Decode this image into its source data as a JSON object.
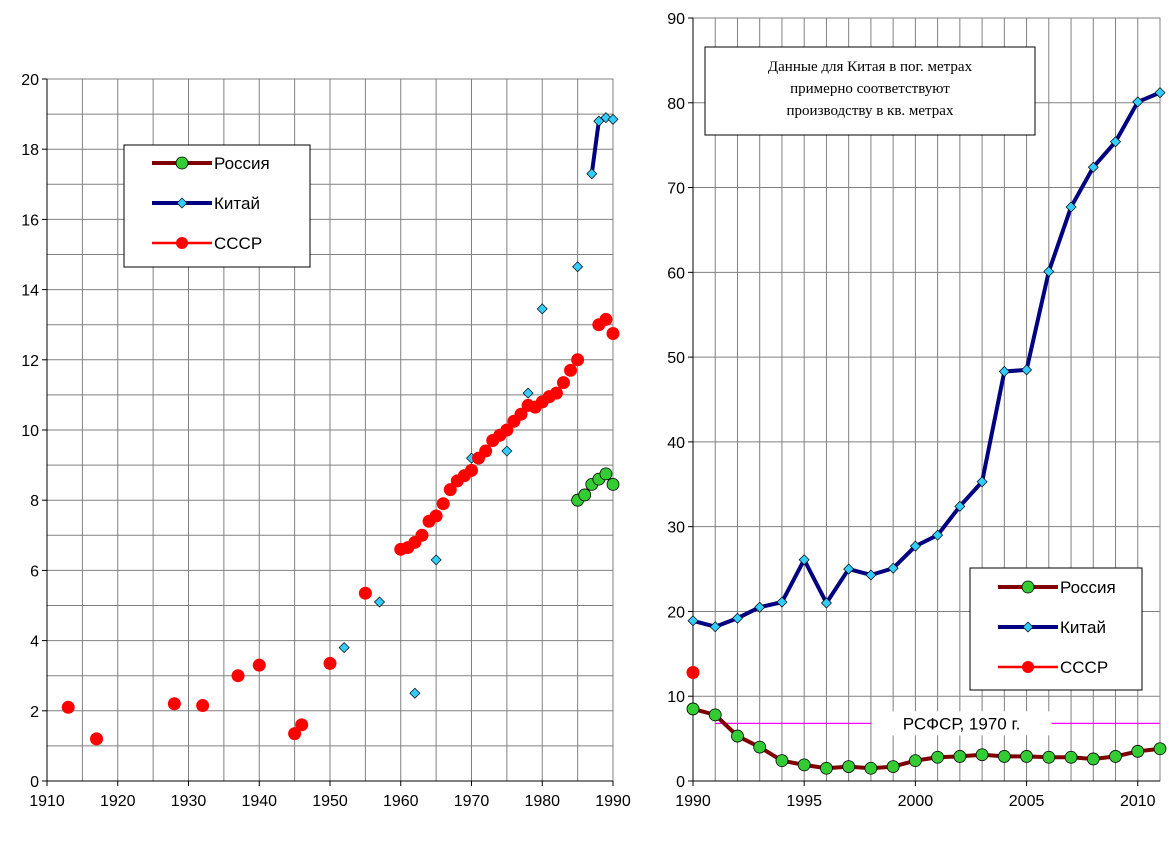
{
  "chart_data": [
    {
      "type": "line",
      "title": "",
      "xlabel": "",
      "ylabel": "",
      "xlim": [
        1910,
        1990
      ],
      "ylim": [
        0,
        20
      ],
      "x_ticks": [
        "1910",
        "1920",
        "1930",
        "1940",
        "1950",
        "1960",
        "1970",
        "1980",
        "1990"
      ],
      "y_ticks": [
        "0",
        "2",
        "4",
        "6",
        "8",
        "10",
        "12",
        "14",
        "16",
        "18",
        "20"
      ],
      "grid": true,
      "legend": "top-left",
      "colors": {
        "russia": "#800000",
        "russia_marker": "#33cc33",
        "china": "#000080",
        "china_marker": "#33ccff",
        "ussr": "#ff0000"
      },
      "series": [
        {
          "name": "Россия",
          "style": "line-markers",
          "x": [
            1985,
            1986,
            1987,
            1988,
            1989,
            1990
          ],
          "y": [
            8.0,
            8.15,
            8.45,
            8.6,
            8.75,
            8.45
          ]
        },
        {
          "name": "Китай",
          "style": "line-markers",
          "x": [
            1952,
            1957,
            1962,
            1965,
            1970,
            1975,
            1978,
            1980,
            1985,
            1987,
            1988,
            1989,
            1990
          ],
          "y": [
            3.8,
            5.1,
            2.5,
            6.3,
            9.2,
            9.4,
            11.05,
            13.45,
            14.65,
            17.3,
            18.8,
            18.9,
            18.85
          ],
          "connected_from": 1987
        },
        {
          "name": "СССР",
          "style": "markers",
          "x": [
            1913,
            1917,
            1928,
            1932,
            1937,
            1940,
            1945,
            1946,
            1950,
            1955,
            1960,
            1961,
            1962,
            1963,
            1964,
            1965,
            1966,
            1967,
            1968,
            1969,
            1970,
            1971,
            1972,
            1973,
            1974,
            1975,
            1976,
            1977,
            1978,
            1979,
            1980,
            1981,
            1982,
            1983,
            1984,
            1985,
            1988,
            1989,
            1990
          ],
          "y": [
            2.1,
            1.2,
            2.2,
            2.15,
            3.0,
            3.3,
            1.35,
            1.6,
            3.35,
            5.35,
            6.6,
            6.65,
            6.8,
            7.0,
            7.4,
            7.55,
            7.9,
            8.3,
            8.55,
            8.7,
            8.85,
            9.2,
            9.4,
            9.7,
            9.85,
            10.0,
            10.25,
            10.45,
            10.7,
            10.65,
            10.8,
            10.95,
            11.05,
            11.35,
            11.7,
            12.0,
            13.0,
            13.15,
            12.75
          ]
        }
      ]
    },
    {
      "type": "line",
      "title": "",
      "xlabel": "",
      "ylabel": "",
      "xlim": [
        1990,
        2011
      ],
      "ylim": [
        0,
        90
      ],
      "x_ticks": [
        "1990",
        "1995",
        "2000",
        "2005",
        "2010"
      ],
      "y_ticks": [
        "0",
        "10",
        "20",
        "30",
        "40",
        "50",
        "60",
        "70",
        "80",
        "90"
      ],
      "grid": true,
      "legend": "bottom-right",
      "annotation": [
        "Данные для Китая в пог. метрах",
        "примерно соответствуют",
        "производству в кв. метрах"
      ],
      "reference_line": {
        "label": "РСФСР, 1970 г.",
        "y": 6.8,
        "x_from": 1991,
        "color": "#ff00ff"
      },
      "colors": {
        "russia": "#800000",
        "russia_marker": "#33cc33",
        "china": "#000080",
        "china_marker": "#33ccff",
        "ussr": "#ff0000"
      },
      "series": [
        {
          "name": "Россия",
          "style": "line-markers",
          "x": [
            1990,
            1991,
            1992,
            1993,
            1994,
            1995,
            1996,
            1997,
            1998,
            1999,
            2000,
            2001,
            2002,
            2003,
            2004,
            2005,
            2006,
            2007,
            2008,
            2009,
            2010,
            2011
          ],
          "y": [
            8.5,
            7.8,
            5.3,
            4.0,
            2.4,
            1.9,
            1.5,
            1.7,
            1.5,
            1.7,
            2.4,
            2.8,
            2.9,
            3.1,
            2.9,
            2.9,
            2.8,
            2.8,
            2.6,
            2.9,
            3.5,
            3.8
          ]
        },
        {
          "name": "Китай",
          "style": "line-markers",
          "x": [
            1990,
            1991,
            1992,
            1993,
            1994,
            1995,
            1996,
            1997,
            1998,
            1999,
            2000,
            2001,
            2002,
            2003,
            2004,
            2005,
            2006,
            2007,
            2008,
            2009,
            2010,
            2011
          ],
          "y": [
            18.9,
            18.2,
            19.2,
            20.5,
            21.1,
            26.1,
            21.0,
            25.0,
            24.3,
            25.1,
            27.7,
            29.0,
            32.4,
            35.3,
            48.3,
            48.5,
            60.1,
            67.7,
            72.4,
            75.4,
            80.1,
            81.2
          ]
        },
        {
          "name": "СССР",
          "style": "markers",
          "x": [
            1990
          ],
          "y": [
            12.8
          ]
        }
      ]
    }
  ]
}
